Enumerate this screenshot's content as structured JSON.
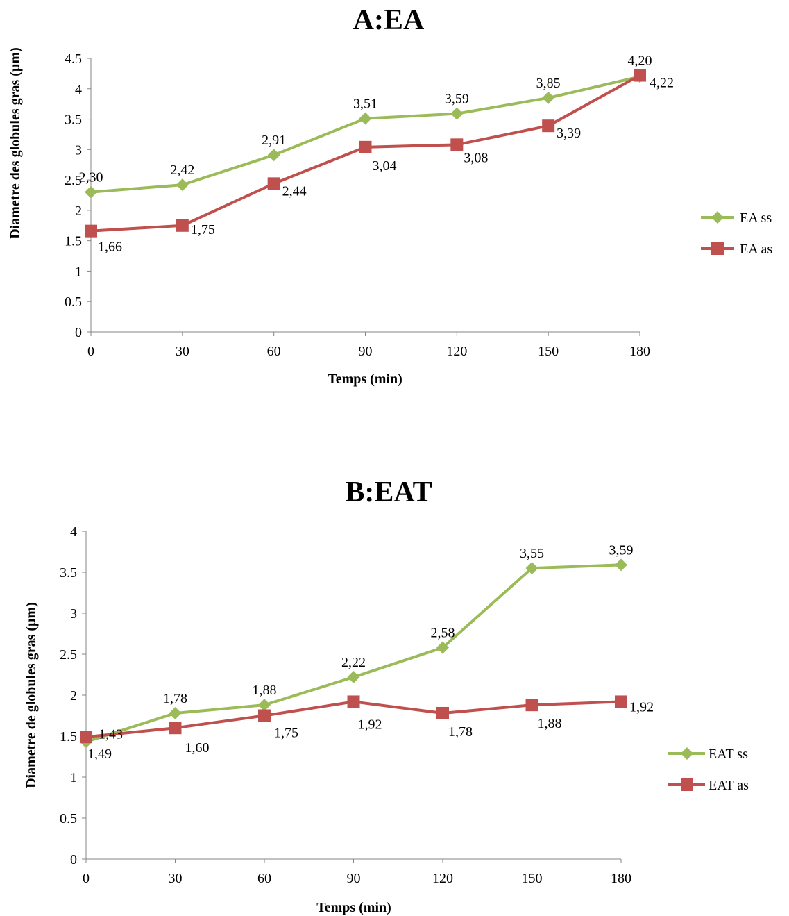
{
  "colors": {
    "green": "#9BBB59",
    "red": "#C0504D",
    "axis": "#868686"
  },
  "chart_data": [
    {
      "type": "line",
      "title": "A:EA",
      "xlabel": "Temps (min)",
      "ylabel": "Diametre des globules gras (µm)",
      "x": [
        0,
        30,
        60,
        90,
        120,
        150,
        180
      ],
      "x_tick_labels": [
        "0",
        "30",
        "60",
        "90",
        "120",
        "150",
        "180"
      ],
      "ylim": [
        0,
        4.5
      ],
      "y_tick_labels": [
        "0",
        "0.5",
        "1",
        "1.5",
        "2",
        "2.5",
        "3",
        "3.5",
        "4",
        "4.5"
      ],
      "grid": false,
      "legend_position": "right",
      "series": [
        {
          "name": "EA ss",
          "color": "#9BBB59",
          "marker": "diamond",
          "values": [
            2.3,
            2.42,
            2.91,
            3.51,
            3.59,
            3.85,
            4.2
          ],
          "data_labels": [
            "2,30",
            "2,42",
            "2,91",
            "3,51",
            "3,59",
            "3,85",
            "4,20"
          ]
        },
        {
          "name": "EA as",
          "color": "#C0504D",
          "marker": "square",
          "values": [
            1.66,
            1.75,
            2.44,
            3.04,
            3.08,
            3.39,
            4.22
          ],
          "data_labels": [
            "1,66",
            "1,75",
            "2,44",
            "3,04",
            "3,08",
            "3,39",
            "4,22"
          ]
        }
      ]
    },
    {
      "type": "line",
      "title": "B:EAT",
      "xlabel": "Temps (min)",
      "ylabel": "Diametre de globules gras (µm)",
      "x": [
        0,
        30,
        60,
        90,
        120,
        150,
        180
      ],
      "x_tick_labels": [
        "0",
        "30",
        "60",
        "90",
        "120",
        "150",
        "180"
      ],
      "ylim": [
        0,
        4
      ],
      "y_tick_labels": [
        "0",
        "0.5",
        "1",
        "1.5",
        "2",
        "2.5",
        "3",
        "3.5",
        "4"
      ],
      "grid": false,
      "legend_position": "right",
      "series": [
        {
          "name": "EAT ss",
          "color": "#9BBB59",
          "marker": "diamond",
          "values": [
            1.43,
            1.78,
            1.88,
            2.22,
            2.58,
            3.55,
            3.59
          ],
          "data_labels": [
            "1,43",
            "1,78",
            "1,88",
            "2,22",
            "2,58",
            "3,55",
            "3,59"
          ]
        },
        {
          "name": "EAT as",
          "color": "#C0504D",
          "marker": "square",
          "values": [
            1.49,
            1.6,
            1.75,
            1.92,
            1.78,
            1.88,
            1.92
          ],
          "data_labels": [
            "1,49",
            "1,60",
            "1,75",
            "1,92",
            "1,78",
            "1,88",
            "1,92"
          ]
        }
      ]
    }
  ]
}
